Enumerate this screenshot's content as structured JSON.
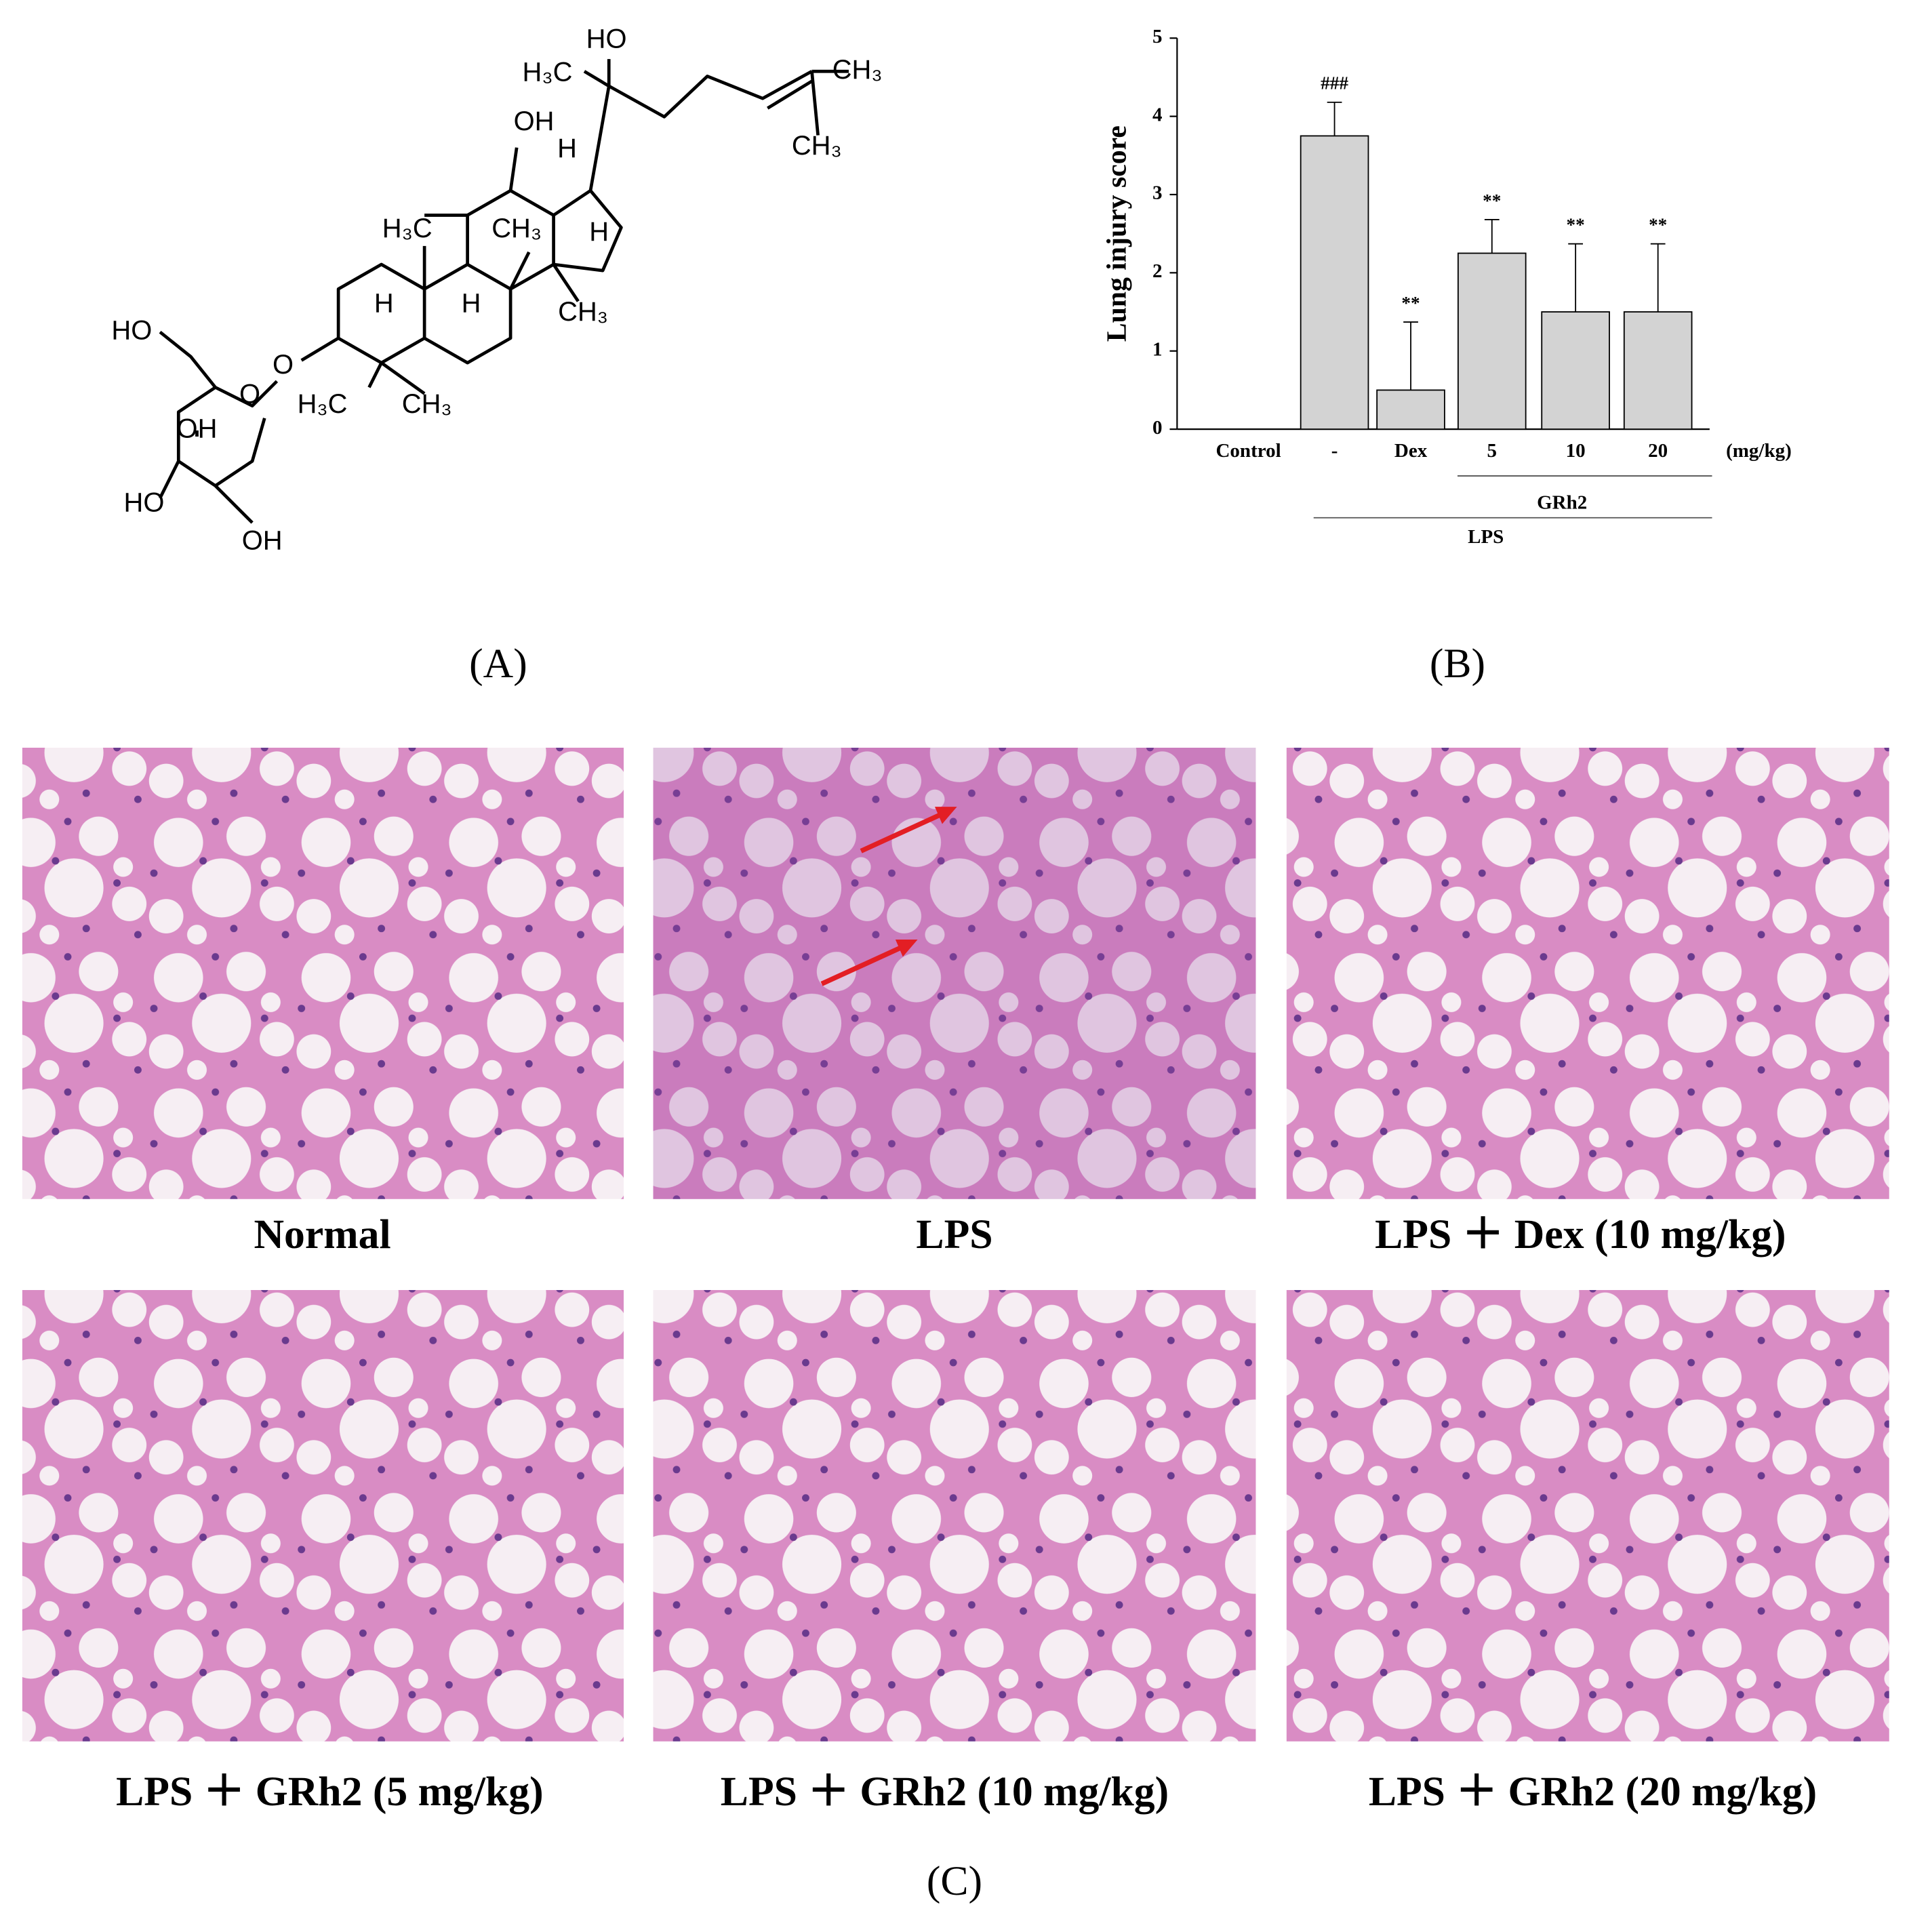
{
  "structure": {
    "labels": [
      "HO",
      "H₃C",
      "CH₃",
      "CH₃",
      "OH",
      "H",
      "H₃C",
      "CH₃",
      "H",
      "H",
      "H",
      "CH₃",
      "HO",
      "O",
      "O",
      "OH",
      "H₃C",
      "CH₃",
      "HO",
      "OH"
    ]
  },
  "chart_data": {
    "type": "bar",
    "y_label": "Lung injury score",
    "categories": [
      "Control",
      "-",
      "Dex",
      "5",
      "10",
      "20"
    ],
    "values": [
      0,
      3.75,
      0.5,
      2.25,
      1.5,
      1.5
    ],
    "errors": [
      0,
      0.43,
      0.87,
      0.43,
      0.87,
      0.87
    ],
    "annotations": [
      null,
      "###",
      "**",
      "**",
      "**",
      "**"
    ],
    "color": "#d3d3d3",
    "ylim": [
      0,
      5
    ],
    "yticks": [
      0,
      1,
      2,
      3,
      4,
      5
    ],
    "unit_label": "(mg/kg)",
    "groups": [
      "GRh2",
      "LPS"
    ]
  },
  "panel_labels": [
    "(A)",
    "(B)",
    "(C)"
  ],
  "captions": [
    "Normal",
    "LPS",
    "LPS ＋ Dex (10 mg/kg)",
    "LPS ＋ GRh2 (5 mg/kg)",
    "LPS ＋ GRh2 (10 mg/kg)",
    "LPS ＋ GRh2 (20 mg/kg)"
  ]
}
